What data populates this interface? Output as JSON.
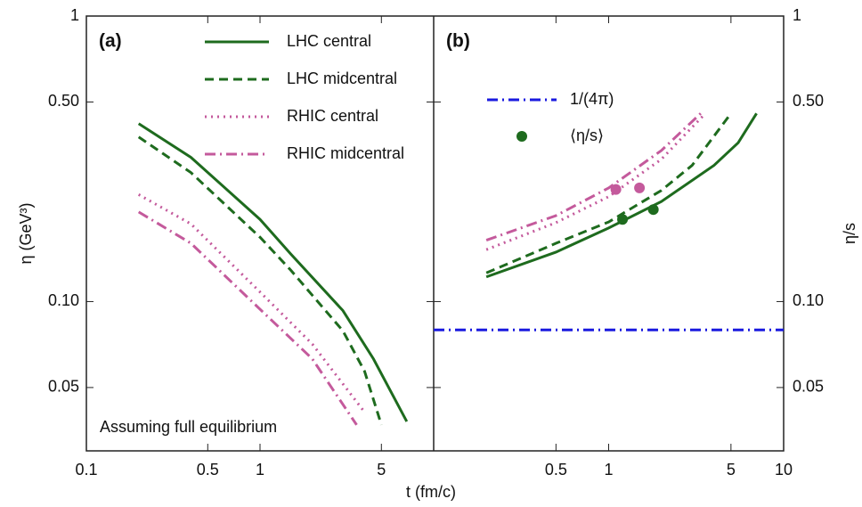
{
  "chart_data": [
    {
      "type": "line",
      "panel_label": "(a)",
      "ylabel": "η (GeV³)",
      "xlabel": "t (fm/c)",
      "annotation": "Assuming full equilibrium",
      "xscale": "log",
      "yscale": "log",
      "xlim": [
        0.1,
        10
      ],
      "ylim": [
        0.03,
        1
      ],
      "xticks": [
        0.1,
        0.5,
        1,
        5
      ],
      "yticks": [
        {
          "value": 0.05,
          "label": "0.05"
        },
        {
          "value": 0.1,
          "label": "0.10"
        },
        {
          "value": 0.5,
          "label": "0.50"
        },
        1
      ],
      "series": [
        {
          "name": "LHC central",
          "color": "#1e6b1e",
          "dash": "solid",
          "x": [
            0.2,
            0.4,
            1,
            1.5,
            3,
            4.5,
            7
          ],
          "values": [
            0.42,
            0.32,
            0.194,
            0.147,
            0.093,
            0.063,
            0.038
          ]
        },
        {
          "name": "LHC midcentral",
          "color": "#1e6b1e",
          "dash": "dashed",
          "x": [
            0.2,
            0.4,
            1,
            1.5,
            3,
            4,
            5
          ],
          "values": [
            0.377,
            0.283,
            0.168,
            0.129,
            0.079,
            0.057,
            0.037
          ]
        },
        {
          "name": "RHIC central",
          "color": "#c45a9c",
          "dash": "dotted",
          "x": [
            0.2,
            0.4,
            1,
            2,
            4
          ],
          "values": [
            0.237,
            0.187,
            0.108,
            0.071,
            0.041
          ]
        },
        {
          "name": "RHIC midcentral",
          "color": "#c45a9c",
          "dash": "dashdot",
          "x": [
            0.2,
            0.4,
            1,
            2,
            3.6
          ],
          "values": [
            0.206,
            0.16,
            0.094,
            0.063,
            0.037
          ]
        }
      ]
    },
    {
      "type": "line",
      "panel_label": "(b)",
      "ylabel": "η/s",
      "xscale": "log",
      "yscale": "log",
      "xlim": [
        0.1,
        10
      ],
      "ylim": [
        0.03,
        1
      ],
      "xticks": [
        0.5,
        1,
        5,
        10
      ],
      "yticks": [
        {
          "value": 0.05,
          "label": "0.05"
        },
        {
          "value": 0.1,
          "label": "0.10"
        },
        {
          "value": 0.5,
          "label": "0.50"
        },
        1
      ],
      "series": [
        {
          "name": "1/(4π)",
          "color": "#1a1adf",
          "dash": "dashdot",
          "x": [
            0.1,
            10
          ],
          "values": [
            0.0796,
            0.0796
          ]
        },
        {
          "name": "⟨η/s⟩",
          "color": "#1e6b1e",
          "dash": "points",
          "colors": [
            "#c45a9c",
            "#c45a9c",
            "#1e6b1e",
            "#1e6b1e"
          ],
          "x": [
            1.1,
            1.5,
            1.2,
            1.8
          ],
          "values": [
            0.247,
            0.25,
            0.194,
            0.21
          ]
        },
        {
          "color": "#1e6b1e",
          "dash": "solid",
          "x": [
            0.2,
            0.5,
            1,
            2,
            4,
            5.5,
            7
          ],
          "values": [
            0.122,
            0.149,
            0.181,
            0.224,
            0.3,
            0.36,
            0.456
          ]
        },
        {
          "color": "#1e6b1e",
          "dash": "dashed",
          "x": [
            0.2,
            0.5,
            1,
            2,
            3,
            5
          ],
          "values": [
            0.126,
            0.16,
            0.19,
            0.245,
            0.3,
            0.456
          ]
        },
        {
          "color": "#c45a9c",
          "dash": "dotted",
          "x": [
            0.2,
            0.5,
            1,
            2,
            3.5
          ],
          "values": [
            0.152,
            0.189,
            0.233,
            0.315,
            0.45
          ]
        },
        {
          "color": "#c45a9c",
          "dash": "dashdot",
          "x": [
            0.2,
            0.5,
            1,
            2,
            3.5
          ],
          "values": [
            0.164,
            0.2,
            0.25,
            0.338,
            0.467
          ]
        }
      ]
    }
  ]
}
